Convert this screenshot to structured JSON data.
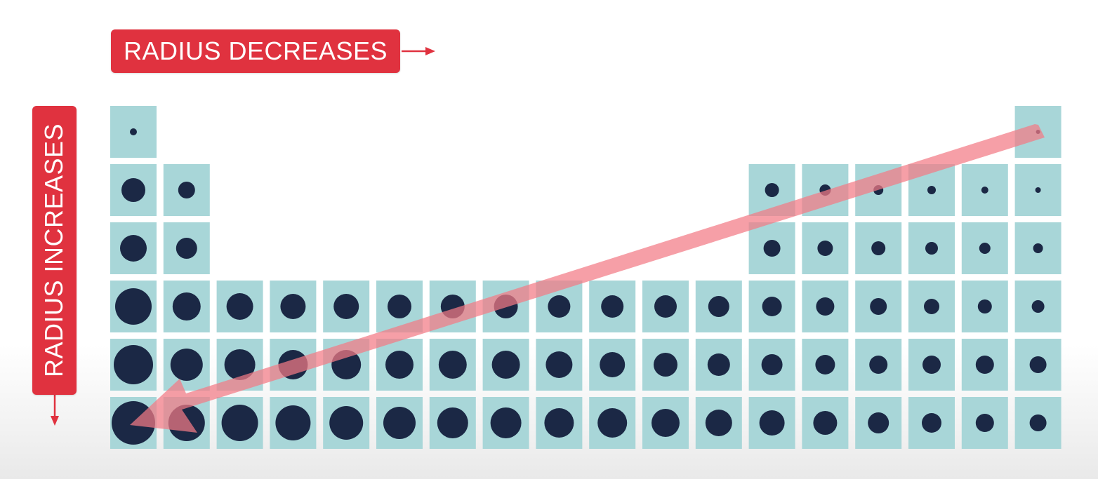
{
  "labels": {
    "horizontal": "RADIUS DECREASES",
    "vertical": "RADIUS INCREASES"
  },
  "colors": {
    "label_bg": "#e0323f",
    "cell_fill": "#a8d6d8",
    "atom_fill": "#1b2845",
    "trend_arrow": "#f27a85"
  },
  "periodic_table": {
    "rows": [
      {
        "cells": [
          {
            "group": 1,
            "r": 5
          },
          {
            "group": 18,
            "r": 3
          }
        ]
      },
      {
        "cells": [
          {
            "group": 1,
            "r": 17
          },
          {
            "group": 2,
            "r": 12
          },
          {
            "group": 13,
            "r": 10
          },
          {
            "group": 14,
            "r": 8
          },
          {
            "group": 15,
            "r": 7
          },
          {
            "group": 16,
            "r": 6
          },
          {
            "group": 17,
            "r": 5
          },
          {
            "group": 18,
            "r": 4
          }
        ]
      },
      {
        "cells": [
          {
            "group": 1,
            "r": 19
          },
          {
            "group": 2,
            "r": 15
          },
          {
            "group": 13,
            "r": 12
          },
          {
            "group": 14,
            "r": 11
          },
          {
            "group": 15,
            "r": 10
          },
          {
            "group": 16,
            "r": 9
          },
          {
            "group": 17,
            "r": 8
          },
          {
            "group": 18,
            "r": 7
          }
        ]
      },
      {
        "cells": [
          {
            "group": 1,
            "r": 26
          },
          {
            "group": 2,
            "r": 20
          },
          {
            "group": 3,
            "r": 19
          },
          {
            "group": 4,
            "r": 18
          },
          {
            "group": 5,
            "r": 18
          },
          {
            "group": 6,
            "r": 17
          },
          {
            "group": 7,
            "r": 17
          },
          {
            "group": 8,
            "r": 17
          },
          {
            "group": 9,
            "r": 16
          },
          {
            "group": 10,
            "r": 16
          },
          {
            "group": 11,
            "r": 16
          },
          {
            "group": 12,
            "r": 15
          },
          {
            "group": 13,
            "r": 14
          },
          {
            "group": 14,
            "r": 13
          },
          {
            "group": 15,
            "r": 12
          },
          {
            "group": 16,
            "r": 11
          },
          {
            "group": 17,
            "r": 10
          },
          {
            "group": 18,
            "r": 9
          }
        ]
      },
      {
        "cells": [
          {
            "group": 1,
            "r": 28
          },
          {
            "group": 2,
            "r": 23
          },
          {
            "group": 3,
            "r": 22
          },
          {
            "group": 4,
            "r": 21
          },
          {
            "group": 5,
            "r": 21
          },
          {
            "group": 6,
            "r": 20
          },
          {
            "group": 7,
            "r": 20
          },
          {
            "group": 8,
            "r": 20
          },
          {
            "group": 9,
            "r": 19
          },
          {
            "group": 10,
            "r": 18
          },
          {
            "group": 11,
            "r": 17
          },
          {
            "group": 12,
            "r": 16
          },
          {
            "group": 13,
            "r": 15
          },
          {
            "group": 14,
            "r": 14
          },
          {
            "group": 15,
            "r": 13
          },
          {
            "group": 16,
            "r": 13
          },
          {
            "group": 17,
            "r": 13
          },
          {
            "group": 18,
            "r": 12
          }
        ]
      },
      {
        "cells": [
          {
            "group": 1,
            "r": 31
          },
          {
            "group": 2,
            "r": 26
          },
          {
            "group": 3,
            "r": 26
          },
          {
            "group": 4,
            "r": 25
          },
          {
            "group": 5,
            "r": 24
          },
          {
            "group": 6,
            "r": 23
          },
          {
            "group": 7,
            "r": 22
          },
          {
            "group": 8,
            "r": 22
          },
          {
            "group": 9,
            "r": 21
          },
          {
            "group": 10,
            "r": 21
          },
          {
            "group": 11,
            "r": 20
          },
          {
            "group": 12,
            "r": 19
          },
          {
            "group": 13,
            "r": 18
          },
          {
            "group": 14,
            "r": 17
          },
          {
            "group": 15,
            "r": 15
          },
          {
            "group": 16,
            "r": 14
          },
          {
            "group": 17,
            "r": 13
          },
          {
            "group": 18,
            "r": 12
          }
        ]
      }
    ]
  }
}
